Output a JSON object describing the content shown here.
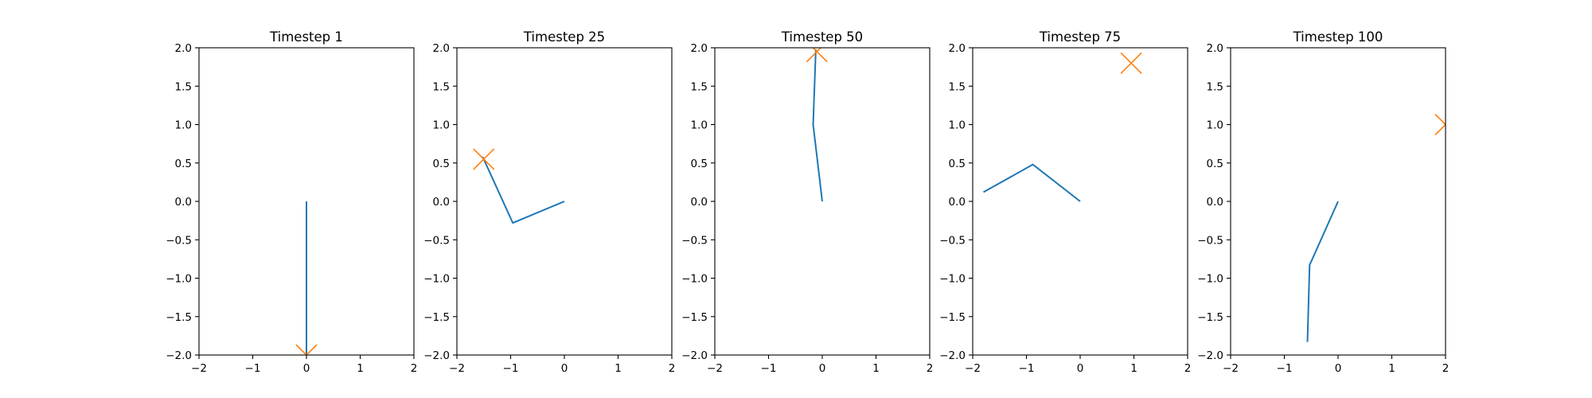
{
  "chart_data": [
    {
      "type": "line",
      "title": "Timestep 1",
      "xlim": [
        -2,
        2
      ],
      "ylim": [
        -2,
        2
      ],
      "xticks": [
        -2,
        -1,
        0,
        1,
        2
      ],
      "yticks": [
        -2.0,
        -1.5,
        -1.0,
        -0.5,
        0.0,
        0.5,
        1.0,
        1.5,
        2.0
      ],
      "xtick_labels": [
        "−2",
        "−1",
        "0",
        "1",
        "2"
      ],
      "ytick_labels": [
        "−2.0",
        "−1.5",
        "−1.0",
        "−0.5",
        "0.0",
        "0.5",
        "1.0",
        "1.5",
        "2.0"
      ],
      "series": [
        {
          "kind": "line",
          "x": [
            0,
            0,
            0
          ],
          "y": [
            0,
            -1,
            -2
          ],
          "color": "#1f77b4"
        },
        {
          "kind": "marker",
          "marker": "x",
          "x": [
            0
          ],
          "y": [
            -2
          ],
          "color": "#ff7f0e"
        }
      ],
      "grid": false
    },
    {
      "type": "line",
      "title": "Timestep 25",
      "xlim": [
        -2,
        2
      ],
      "ylim": [
        -2,
        2
      ],
      "xticks": [
        -2,
        -1,
        0,
        1,
        2
      ],
      "yticks": [
        -2.0,
        -1.5,
        -1.0,
        -0.5,
        0.0,
        0.5,
        1.0,
        1.5,
        2.0
      ],
      "xtick_labels": [
        "−2",
        "−1",
        "0",
        "1",
        "2"
      ],
      "ytick_labels": [
        "−2.0",
        "−1.5",
        "−1.0",
        "−0.5",
        "0.0",
        "0.5",
        "1.0",
        "1.5",
        "2.0"
      ],
      "series": [
        {
          "kind": "line",
          "x": [
            0,
            -0.96,
            -1.52
          ],
          "y": [
            0,
            -0.28,
            0.58
          ],
          "color": "#1f77b4"
        },
        {
          "kind": "marker",
          "marker": "x",
          "x": [
            -1.5
          ],
          "y": [
            0.55
          ],
          "color": "#ff7f0e"
        }
      ],
      "grid": false
    },
    {
      "type": "line",
      "title": "Timestep 50",
      "xlim": [
        -2,
        2
      ],
      "ylim": [
        -2,
        2
      ],
      "xticks": [
        -2,
        -1,
        0,
        1,
        2
      ],
      "yticks": [
        -2.0,
        -1.5,
        -1.0,
        -0.5,
        0.0,
        0.5,
        1.0,
        1.5,
        2.0
      ],
      "xtick_labels": [
        "−2",
        "−1",
        "0",
        "1",
        "2"
      ],
      "ytick_labels": [
        "−2.0",
        "−1.5",
        "−1.0",
        "−0.5",
        "0.0",
        "0.5",
        "1.0",
        "1.5",
        "2.0"
      ],
      "series": [
        {
          "kind": "line",
          "x": [
            0,
            -0.17,
            -0.12
          ],
          "y": [
            0,
            1.0,
            1.98
          ],
          "color": "#1f77b4"
        },
        {
          "kind": "marker",
          "marker": "x",
          "x": [
            -0.1
          ],
          "y": [
            1.95
          ],
          "color": "#ff7f0e"
        }
      ],
      "grid": false
    },
    {
      "type": "line",
      "title": "Timestep 75",
      "xlim": [
        -2,
        2
      ],
      "ylim": [
        -2,
        2
      ],
      "xticks": [
        -2,
        -1,
        0,
        1,
        2
      ],
      "yticks": [
        -2.0,
        -1.5,
        -1.0,
        -0.5,
        0.0,
        0.5,
        1.0,
        1.5,
        2.0
      ],
      "xtick_labels": [
        "−2",
        "−1",
        "0",
        "1",
        "2"
      ],
      "ytick_labels": [
        "−2.0",
        "−1.5",
        "−1.0",
        "−0.5",
        "0.0",
        "0.5",
        "1.0",
        "1.5",
        "2.0"
      ],
      "series": [
        {
          "kind": "line",
          "x": [
            0,
            -0.88,
            -1.8
          ],
          "y": [
            0,
            0.48,
            0.12
          ],
          "color": "#1f77b4"
        },
        {
          "kind": "marker",
          "marker": "x",
          "x": [
            0.95
          ],
          "y": [
            1.8
          ],
          "color": "#ff7f0e"
        }
      ],
      "grid": false
    },
    {
      "type": "line",
      "title": "Timestep 100",
      "xlim": [
        -2,
        2
      ],
      "ylim": [
        -2,
        2
      ],
      "xticks": [
        -2,
        -1,
        0,
        1,
        2
      ],
      "yticks": [
        -2.0,
        -1.5,
        -1.0,
        -0.5,
        0.0,
        0.5,
        1.0,
        1.5,
        2.0
      ],
      "xtick_labels": [
        "−2",
        "−1",
        "0",
        "1",
        "2"
      ],
      "ytick_labels": [
        "−2.0",
        "−1.5",
        "−1.0",
        "−0.5",
        "0.0",
        "0.5",
        "1.0",
        "1.5",
        "2.0"
      ],
      "series": [
        {
          "kind": "line",
          "x": [
            0,
            -0.53,
            -0.57
          ],
          "y": [
            0,
            -0.83,
            -1.83
          ],
          "color": "#1f77b4"
        },
        {
          "kind": "marker",
          "marker": "x",
          "x": [
            2.0
          ],
          "y": [
            1.0
          ],
          "color": "#ff7f0e"
        }
      ],
      "grid": false
    }
  ]
}
